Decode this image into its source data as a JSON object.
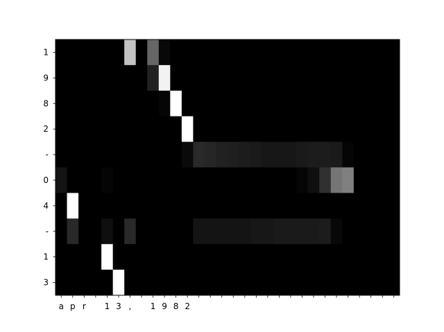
{
  "chart_data": {
    "type": "heatmap",
    "title": "",
    "xlabel": "",
    "ylabel": "",
    "colormap": "gray",
    "value_range": [
      0,
      1
    ],
    "x_labels": [
      "a",
      "p",
      "r",
      " ",
      "1",
      "3",
      ",",
      " ",
      "1",
      "9",
      "8",
      "2",
      "",
      "",
      "",
      "",
      "",
      "",
      "",
      "",
      "",
      "",
      "",
      "",
      "",
      "",
      "",
      "",
      "",
      ""
    ],
    "y_labels": [
      "1",
      "9",
      "8",
      "2",
      "-",
      "0",
      "4",
      "-",
      "1",
      "3"
    ],
    "values": [
      [
        0,
        0,
        0,
        0,
        0,
        0,
        0.76,
        0,
        0.4,
        0.03,
        0,
        0,
        0,
        0,
        0,
        0,
        0,
        0,
        0,
        0,
        0,
        0,
        0,
        0,
        0,
        0,
        0,
        0,
        0,
        0
      ],
      [
        0,
        0,
        0,
        0,
        0,
        0,
        0,
        0,
        0.13,
        0.95,
        0,
        0,
        0,
        0,
        0,
        0,
        0,
        0,
        0,
        0,
        0,
        0,
        0,
        0,
        0,
        0,
        0,
        0,
        0,
        0
      ],
      [
        0,
        0,
        0,
        0,
        0,
        0,
        0,
        0,
        0,
        0.02,
        1.0,
        0,
        0,
        0,
        0,
        0,
        0,
        0,
        0,
        0,
        0,
        0,
        0,
        0,
        0,
        0,
        0,
        0,
        0,
        0
      ],
      [
        0,
        0,
        0,
        0,
        0,
        0,
        0,
        0,
        0,
        0,
        0,
        1.0,
        0,
        0,
        0,
        0,
        0,
        0,
        0,
        0,
        0,
        0,
        0,
        0,
        0,
        0,
        0,
        0,
        0,
        0
      ],
      [
        0,
        0,
        0,
        0,
        0,
        0,
        0,
        0,
        0,
        0,
        0,
        0.04,
        0.16,
        0.15,
        0.13,
        0.12,
        0.11,
        0.1,
        0.09,
        0.09,
        0.09,
        0.1,
        0.11,
        0.11,
        0.1,
        0.02,
        0,
        0,
        0,
        0
      ],
      [
        0.08,
        0,
        0,
        0,
        0.02,
        0,
        0,
        0,
        0,
        0,
        0,
        0,
        0,
        0,
        0,
        0,
        0,
        0,
        0,
        0,
        0,
        0.02,
        0.06,
        0.19,
        0.46,
        0.5,
        0,
        0,
        0,
        0
      ],
      [
        0,
        1.0,
        0,
        0,
        0,
        0,
        0,
        0,
        0,
        0,
        0,
        0,
        0,
        0,
        0,
        0,
        0,
        0,
        0,
        0,
        0,
        0,
        0,
        0,
        0,
        0,
        0,
        0,
        0,
        0
      ],
      [
        0,
        0.16,
        0,
        0,
        0.06,
        0,
        0.16,
        0,
        0,
        0,
        0,
        0,
        0.08,
        0.08,
        0.08,
        0.08,
        0.08,
        0.09,
        0.09,
        0.1,
        0.1,
        0.1,
        0.1,
        0.11,
        0.03,
        0,
        0,
        0,
        0,
        0
      ],
      [
        0,
        0,
        0,
        0,
        1.0,
        0,
        0,
        0,
        0,
        0,
        0,
        0,
        0,
        0,
        0,
        0,
        0,
        0,
        0,
        0,
        0,
        0,
        0,
        0,
        0,
        0,
        0,
        0,
        0,
        0
      ],
      [
        0,
        0,
        0,
        0,
        0,
        1.0,
        0,
        0,
        0,
        0,
        0,
        0,
        0,
        0,
        0,
        0,
        0,
        0,
        0,
        0,
        0,
        0,
        0,
        0,
        0,
        0,
        0,
        0,
        0,
        0
      ]
    ]
  }
}
